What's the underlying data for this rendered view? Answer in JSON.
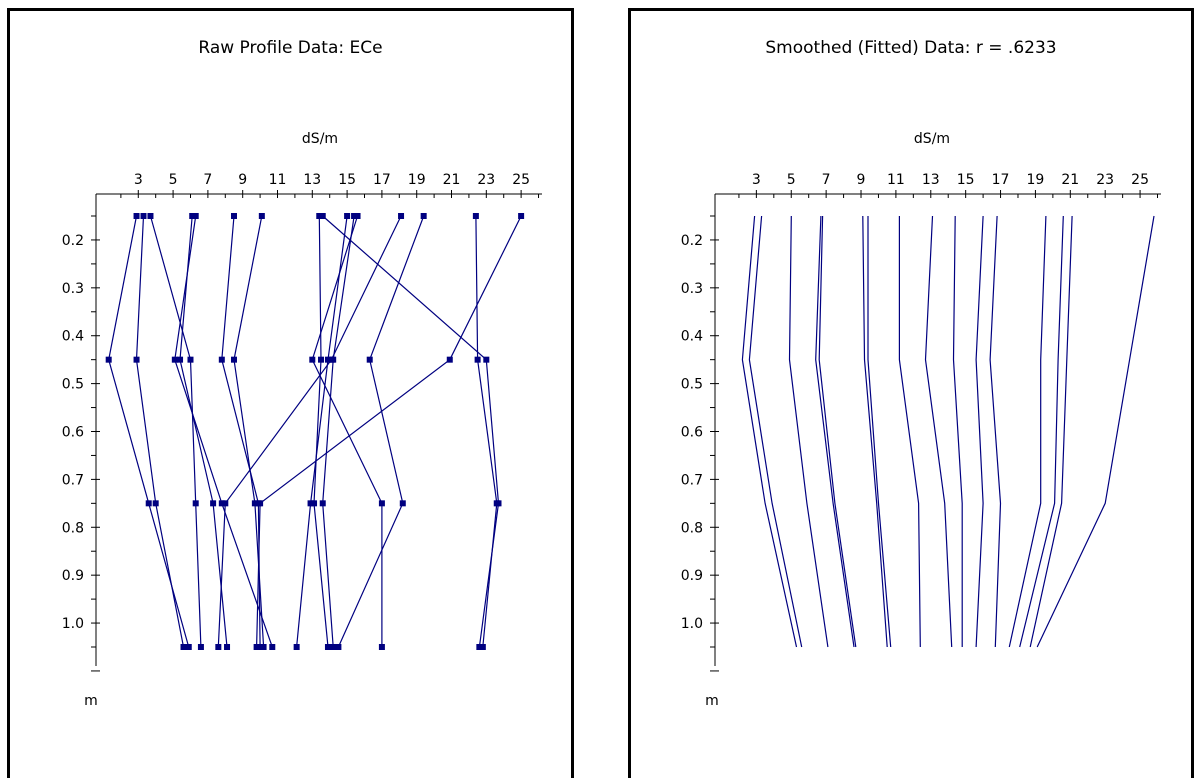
{
  "colors": {
    "series": "#000080",
    "axis": "#000000",
    "frame": "#000000",
    "background": "#ffffff"
  },
  "chart_data": [
    {
      "type": "line",
      "title": "Raw Profile Data: ECe",
      "xlabel": "dS/m",
      "ylabel": "m",
      "x_ticks": [
        "3",
        "5",
        "7",
        "9",
        "11",
        "13",
        "15",
        "17",
        "19",
        "21",
        "23",
        "25"
      ],
      "y_ticks": [
        "0.2",
        "0.3",
        "0.4",
        "0.5",
        "0.6",
        "0.7",
        "0.8",
        "0.9",
        "1.0"
      ],
      "xlim": [
        0.8,
        26.2
      ],
      "ylim": [
        0.15,
        1.05
      ],
      "depths": [
        0.15,
        0.45,
        0.75,
        1.05
      ],
      "markers": true,
      "profiles": [
        [
          2.9,
          1.3,
          3.6,
          5.9
        ],
        [
          3.3,
          2.9,
          4.0,
          5.6
        ],
        [
          3.7,
          6.0,
          6.3,
          6.6
        ],
        [
          6.1,
          5.4,
          7.3,
          8.1
        ],
        [
          6.3,
          5.1,
          7.8,
          10.7
        ],
        [
          8.5,
          7.8,
          9.9,
          10.0
        ],
        [
          10.1,
          8.5,
          9.7,
          10.2
        ],
        [
          13.4,
          13.5,
          13.1,
          13.9
        ],
        [
          13.6,
          23.0,
          23.7,
          22.6
        ],
        [
          15.0,
          13.9,
          12.9,
          12.1
        ],
        [
          15.4,
          14.2,
          13.6,
          14.2
        ],
        [
          15.6,
          13.0,
          17.0,
          17.0
        ],
        [
          18.1,
          14.1,
          8.0,
          7.6
        ],
        [
          19.4,
          16.3,
          18.2,
          14.5
        ],
        [
          22.4,
          22.5,
          23.6,
          22.8
        ],
        [
          25.0,
          20.9,
          10.0,
          9.8
        ]
      ]
    },
    {
      "type": "line",
      "title": "Smoothed (Fitted) Data: r =  .6233",
      "xlabel": "dS/m",
      "ylabel": "m",
      "x_ticks": [
        "3",
        "5",
        "7",
        "9",
        "11",
        "13",
        "15",
        "17",
        "19",
        "21",
        "23",
        "25"
      ],
      "y_ticks": [
        "0.2",
        "0.3",
        "0.4",
        "0.5",
        "0.6",
        "0.7",
        "0.8",
        "0.9",
        "1.0"
      ],
      "xlim": [
        0.8,
        26.2
      ],
      "ylim": [
        0.15,
        1.05
      ],
      "depths": [
        0.15,
        0.45,
        0.75,
        1.05
      ],
      "markers": false,
      "profiles": [
        [
          2.9,
          2.2,
          3.5,
          5.3
        ],
        [
          3.3,
          2.6,
          3.9,
          5.6
        ],
        [
          5.0,
          4.9,
          5.9,
          7.1
        ],
        [
          6.7,
          6.4,
          7.4,
          8.6
        ],
        [
          6.8,
          6.6,
          7.5,
          8.7
        ],
        [
          9.1,
          9.2,
          9.9,
          10.5
        ],
        [
          9.4,
          9.4,
          10.0,
          10.7
        ],
        [
          11.2,
          11.2,
          12.3,
          12.4
        ],
        [
          13.1,
          12.7,
          13.8,
          14.2
        ],
        [
          14.4,
          14.3,
          14.8,
          14.8
        ],
        [
          16.0,
          15.6,
          16.0,
          15.6
        ],
        [
          16.8,
          16.4,
          17.0,
          16.7
        ],
        [
          19.6,
          19.3,
          19.3,
          17.5
        ],
        [
          20.6,
          20.3,
          20.1,
          18.1
        ],
        [
          21.1,
          20.8,
          20.5,
          18.7
        ],
        [
          25.8,
          24.4,
          23.0,
          19.1
        ]
      ]
    }
  ]
}
